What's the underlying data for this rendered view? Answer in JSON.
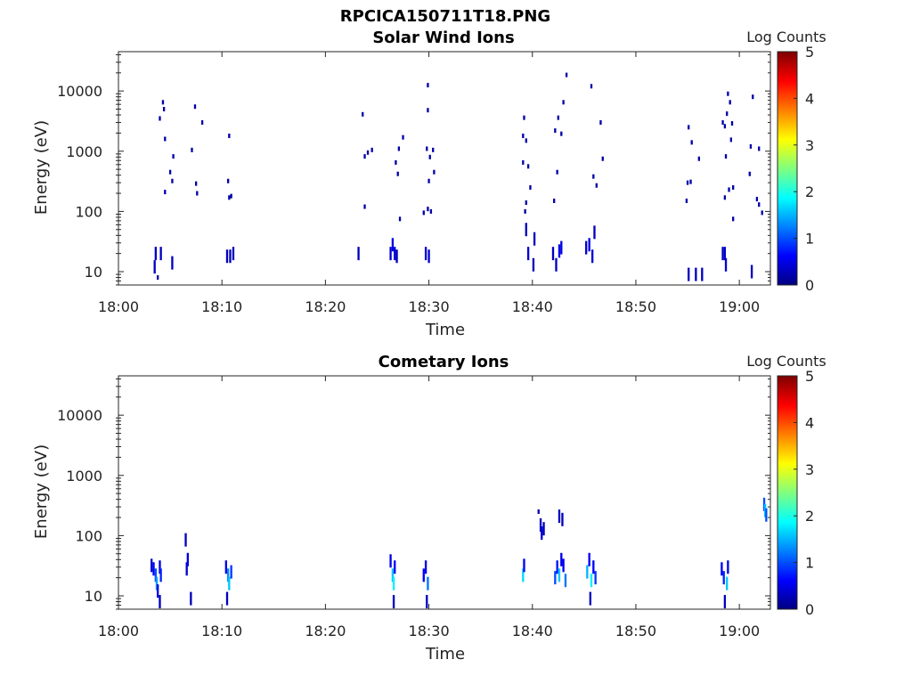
{
  "figure_title": "RPCICA150711T18.PNG",
  "colorbar": {
    "label": "Log Counts",
    "ticks": [
      0,
      1,
      2,
      3,
      4,
      5
    ],
    "range": [
      0,
      5
    ],
    "colormap": [
      "#00008f",
      "#0000ff",
      "#0080ff",
      "#00ffff",
      "#80ff80",
      "#ffff00",
      "#ff8000",
      "#ff0000",
      "#800000"
    ]
  },
  "chart_data": [
    {
      "type": "heatmap",
      "title": "Solar Wind Ions",
      "xlabel": "Time",
      "ylabel": "Energy (eV)",
      "x_ticks": [
        "18:00",
        "18:10",
        "18:20",
        "18:30",
        "18:40",
        "18:50",
        "19:00"
      ],
      "x_range_min": [
        0,
        63
      ],
      "y_scale": "log",
      "y_ticks": [
        "10",
        "100",
        "1000",
        "10000"
      ],
      "y_range": [
        6,
        45000
      ],
      "points": [
        [
          3.5,
          12,
          0.3
        ],
        [
          3.6,
          20,
          0.3
        ],
        [
          4.1,
          20,
          0.3
        ],
        [
          5.2,
          14,
          0.3
        ],
        [
          3.8,
          8,
          0.2
        ],
        [
          4.0,
          3500,
          0.2
        ],
        [
          4.3,
          6500,
          0.2
        ],
        [
          4.4,
          5000,
          0.2
        ],
        [
          4.5,
          1600,
          0.2
        ],
        [
          5.0,
          450,
          0.2
        ],
        [
          5.2,
          320,
          0.2
        ],
        [
          4.5,
          210,
          0.2
        ],
        [
          7.1,
          1050,
          0.2
        ],
        [
          7.4,
          5500,
          0.2
        ],
        [
          8.1,
          3000,
          0.2
        ],
        [
          7.5,
          290,
          0.2
        ],
        [
          7.6,
          200,
          0.2
        ],
        [
          5.3,
          820,
          0.2
        ],
        [
          10.6,
          320,
          0.2
        ],
        [
          10.7,
          170,
          0.2
        ],
        [
          10.9,
          180,
          0.2
        ],
        [
          10.5,
          18,
          0.3
        ],
        [
          10.8,
          18,
          0.3
        ],
        [
          11.1,
          20,
          0.3
        ],
        [
          10.7,
          1800,
          0.2
        ],
        [
          23.2,
          20,
          0.3
        ],
        [
          23.6,
          4100,
          0.2
        ],
        [
          23.8,
          820,
          0.2
        ],
        [
          24.1,
          950,
          0.2
        ],
        [
          24.5,
          1050,
          0.2
        ],
        [
          23.8,
          120,
          0.2
        ],
        [
          26.3,
          20,
          0.4
        ],
        [
          26.5,
          28,
          0.5
        ],
        [
          26.7,
          20,
          0.4
        ],
        [
          26.9,
          18,
          0.3
        ],
        [
          26.8,
          650,
          0.2
        ],
        [
          27.0,
          420,
          0.2
        ],
        [
          27.1,
          1100,
          0.2
        ],
        [
          27.5,
          1700,
          0.2
        ],
        [
          27.2,
          75,
          0.2
        ],
        [
          29.7,
          20,
          0.4
        ],
        [
          30.0,
          18,
          0.4
        ],
        [
          29.9,
          12500,
          0.2
        ],
        [
          29.9,
          4800,
          0.2
        ],
        [
          29.8,
          1100,
          0.2
        ],
        [
          30.1,
          800,
          0.2
        ],
        [
          30.4,
          1050,
          0.2
        ],
        [
          30.5,
          450,
          0.2
        ],
        [
          30.0,
          320,
          0.2
        ],
        [
          29.9,
          110,
          0.2
        ],
        [
          30.2,
          100,
          0.2
        ],
        [
          29.5,
          95,
          0.2
        ],
        [
          39.2,
          3600,
          0.2
        ],
        [
          39.1,
          1800,
          0.2
        ],
        [
          39.4,
          1500,
          0.2
        ],
        [
          39.1,
          650,
          0.2
        ],
        [
          39.6,
          560,
          0.2
        ],
        [
          39.8,
          250,
          0.2
        ],
        [
          39.4,
          140,
          0.2
        ],
        [
          39.3,
          100,
          0.2
        ],
        [
          39.4,
          50,
          0.3
        ],
        [
          39.6,
          20,
          0.4
        ],
        [
          40.1,
          13,
          0.3
        ],
        [
          40.2,
          35,
          0.3
        ],
        [
          42.2,
          2200,
          0.2
        ],
        [
          42.5,
          3600,
          0.2
        ],
        [
          42.8,
          1950,
          0.2
        ],
        [
          43.3,
          18500,
          0.2
        ],
        [
          43.0,
          6500,
          0.2
        ],
        [
          42.4,
          450,
          0.2
        ],
        [
          42.1,
          150,
          0.2
        ],
        [
          42.0,
          20,
          0.3
        ],
        [
          42.6,
          22,
          0.5
        ],
        [
          42.8,
          25,
          0.5
        ],
        [
          42.3,
          13,
          0.3
        ],
        [
          45.2,
          25,
          0.4
        ],
        [
          45.5,
          28,
          0.5
        ],
        [
          45.8,
          18,
          0.4
        ],
        [
          46.0,
          45,
          0.3
        ],
        [
          45.7,
          12000,
          0.2
        ],
        [
          45.9,
          380,
          0.2
        ],
        [
          46.2,
          270,
          0.2
        ],
        [
          46.6,
          3000,
          0.2
        ],
        [
          46.8,
          750,
          0.2
        ],
        [
          55.1,
          2500,
          0.2
        ],
        [
          55.0,
          300,
          0.2
        ],
        [
          55.3,
          310,
          0.2
        ],
        [
          54.9,
          150,
          0.2
        ],
        [
          55.4,
          1400,
          0.2
        ],
        [
          55.1,
          9,
          0.3
        ],
        [
          55.8,
          9,
          0.3
        ],
        [
          56.4,
          9,
          0.3
        ],
        [
          56.1,
          750,
          0.2
        ],
        [
          58.4,
          3000,
          0.2
        ],
        [
          58.6,
          2600,
          0.2
        ],
        [
          58.9,
          9000,
          0.2
        ],
        [
          58.8,
          4200,
          0.2
        ],
        [
          59.1,
          6500,
          0.2
        ],
        [
          59.3,
          2900,
          0.2
        ],
        [
          58.6,
          170,
          0.2
        ],
        [
          59.0,
          230,
          0.2
        ],
        [
          59.4,
          250,
          0.2
        ],
        [
          59.2,
          1550,
          0.2
        ],
        [
          58.7,
          820,
          0.2
        ],
        [
          59.4,
          75,
          0.2
        ],
        [
          58.6,
          20,
          0.4
        ],
        [
          58.7,
          13,
          0.4
        ],
        [
          58.4,
          20,
          0.3
        ],
        [
          61.1,
          1200,
          0.2
        ],
        [
          61.3,
          8000,
          0.2
        ],
        [
          61.9,
          1100,
          0.2
        ],
        [
          61.7,
          160,
          0.2
        ],
        [
          61.9,
          130,
          0.2
        ],
        [
          62.2,
          95,
          0.2
        ],
        [
          61.0,
          420,
          0.2
        ],
        [
          61.2,
          10,
          0.3
        ]
      ]
    },
    {
      "type": "heatmap",
      "title": "Cometary Ions",
      "xlabel": "Time",
      "ylabel": "Energy (eV)",
      "x_ticks": [
        "18:00",
        "18:10",
        "18:20",
        "18:30",
        "18:40",
        "18:50",
        "19:00"
      ],
      "x_range_min": [
        0,
        63
      ],
      "y_scale": "log",
      "y_ticks": [
        "10",
        "100",
        "1000",
        "10000"
      ],
      "y_range": [
        6,
        45000
      ],
      "points": [
        [
          3.2,
          32,
          0.4
        ],
        [
          3.4,
          28,
          0.6
        ],
        [
          3.6,
          22,
          1.0
        ],
        [
          3.7,
          16,
          1.4
        ],
        [
          3.8,
          12,
          0.5
        ],
        [
          4.0,
          30,
          0.5
        ],
        [
          4.1,
          22,
          0.8
        ],
        [
          4.0,
          8,
          0.3
        ],
        [
          6.5,
          85,
          0.3
        ],
        [
          6.6,
          28,
          0.4
        ],
        [
          6.7,
          40,
          0.5
        ],
        [
          7.0,
          9,
          0.3
        ],
        [
          10.4,
          30,
          0.5
        ],
        [
          10.6,
          22,
          1.3
        ],
        [
          10.7,
          16,
          1.6
        ],
        [
          10.9,
          25,
          0.9
        ],
        [
          10.5,
          9,
          0.3
        ],
        [
          26.3,
          38,
          0.5
        ],
        [
          26.5,
          22,
          1.6
        ],
        [
          26.6,
          16,
          1.8
        ],
        [
          26.7,
          30,
          0.6
        ],
        [
          26.6,
          8,
          0.3
        ],
        [
          29.5,
          22,
          0.6
        ],
        [
          29.7,
          30,
          0.5
        ],
        [
          29.9,
          16,
          1.2
        ],
        [
          29.8,
          8,
          0.3
        ],
        [
          39.1,
          22,
          1.7
        ],
        [
          39.2,
          32,
          0.6
        ],
        [
          40.6,
          250,
          0.2
        ],
        [
          40.8,
          150,
          0.3
        ],
        [
          40.9,
          110,
          0.4
        ],
        [
          41.1,
          130,
          0.3
        ],
        [
          42.2,
          20,
          1.0
        ],
        [
          42.4,
          30,
          0.7
        ],
        [
          42.6,
          22,
          1.6
        ],
        [
          42.8,
          40,
          0.5
        ],
        [
          43.0,
          32,
          0.6
        ],
        [
          43.2,
          18,
          1.2
        ],
        [
          42.6,
          210,
          0.3
        ],
        [
          42.9,
          185,
          0.3
        ],
        [
          45.3,
          25,
          1.5
        ],
        [
          45.5,
          40,
          0.6
        ],
        [
          45.7,
          18,
          1.8
        ],
        [
          45.9,
          30,
          0.6
        ],
        [
          46.1,
          20,
          0.9
        ],
        [
          45.6,
          9,
          0.3
        ],
        [
          58.3,
          28,
          0.6
        ],
        [
          58.5,
          20,
          0.8
        ],
        [
          58.8,
          16,
          1.6
        ],
        [
          58.9,
          30,
          0.5
        ],
        [
          58.6,
          8,
          0.3
        ],
        [
          62.4,
          330,
          1.0
        ],
        [
          62.5,
          260,
          1.6
        ],
        [
          62.6,
          220,
          1.0
        ]
      ]
    }
  ]
}
